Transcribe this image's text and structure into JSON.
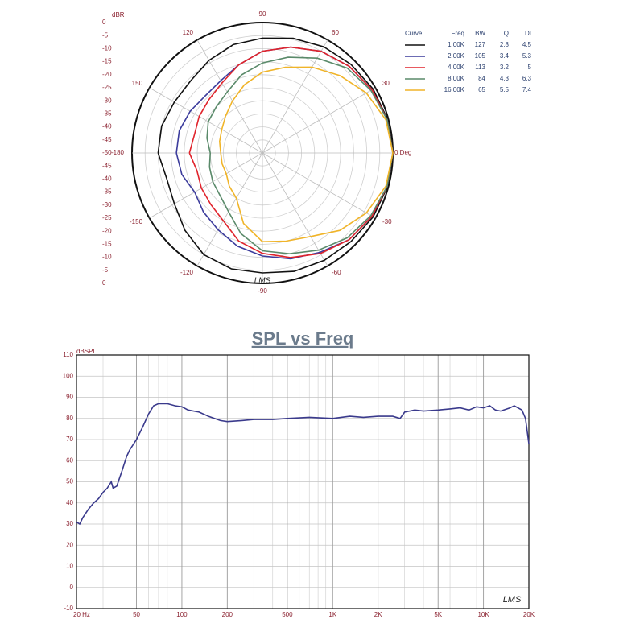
{
  "chart_data": [
    {
      "type": "polar",
      "r_label": "dBR",
      "rlim": [
        -50,
        0
      ],
      "rticks": [
        -50,
        -45,
        -40,
        -35,
        -30,
        -25,
        -20,
        -15,
        -10,
        -5,
        0
      ],
      "theta_ticks": [
        {
          "value": 0,
          "label": "0 Deg"
        },
        30,
        60,
        90,
        120,
        150,
        -180,
        -150,
        -120,
        -90,
        -60,
        -30
      ],
      "legend_headers": [
        "Curve",
        "Freq",
        "BW",
        "Q",
        "DI"
      ],
      "theta": [
        -180,
        -165,
        -150,
        -135,
        -120,
        -105,
        -90,
        -75,
        -60,
        -45,
        -30,
        -15,
        0,
        15,
        30,
        45,
        60,
        75,
        90,
        105,
        120,
        135,
        150,
        165,
        180
      ],
      "series": [
        {
          "name": "1.00K",
          "color": "#111111",
          "bw": 127,
          "q": 2.8,
          "di": 4.5,
          "values": [
            -10,
            -12,
            -11,
            -8,
            -5,
            -4,
            -4,
            -3,
            -2.5,
            -2,
            -1,
            -0.3,
            0,
            -0.3,
            -1,
            -2,
            -3,
            -4.5,
            -6,
            -7,
            -9,
            -11,
            -11,
            -10,
            -10
          ]
        },
        {
          "name": "2.00K",
          "color": "#3c3c9c",
          "bw": 105,
          "q": 3.4,
          "di": 5.3,
          "values": [
            -17,
            -18,
            -20,
            -18,
            -16,
            -13,
            -10.5,
            -8,
            -6,
            -3,
            -1.5,
            -0.5,
            0,
            -0.5,
            -1.5,
            -3,
            -5,
            -8,
            -11,
            -15,
            -18,
            -19,
            -18,
            -17,
            -17
          ]
        },
        {
          "name": "4.00K",
          "color": "#e0242c",
          "bw": 113,
          "q": 3.2,
          "di": 5.0,
          "values": [
            -22,
            -24,
            -23,
            -22,
            -20,
            -15,
            -11.5,
            -8.5,
            -5.5,
            -3,
            -1.5,
            -0.5,
            0,
            -0.5,
            -1.5,
            -3,
            -5,
            -8,
            -11,
            -15,
            -19,
            -21,
            -22,
            -23,
            -22
          ]
        },
        {
          "name": "8.00K",
          "color": "#5a8a6a",
          "bw": 84,
          "q": 4.3,
          "di": 6.3,
          "values": [
            -30,
            -29,
            -28,
            -27,
            -24,
            -18,
            -12.5,
            -10,
            -7,
            -4,
            -2,
            -0.5,
            0,
            -0.5,
            -2,
            -4,
            -8,
            -12,
            -15.5,
            -19,
            -23,
            -25,
            -26,
            -28,
            -30
          ]
        },
        {
          "name": "16.00K",
          "color": "#f0b429",
          "bw": 65,
          "q": 5.5,
          "di": 7.4,
          "values": [
            -34,
            -34,
            -34,
            -32,
            -30,
            -22,
            -16,
            -15,
            -13,
            -8,
            -4,
            -1,
            0,
            -1,
            -4,
            -8,
            -12,
            -16,
            -19,
            -23,
            -27,
            -30,
            -32,
            -33,
            -34
          ]
        }
      ],
      "watermark": "LMS"
    },
    {
      "type": "line",
      "title": "SPL vs Freq",
      "y_label": "dBSPL",
      "log_x": true,
      "color": "#3a3a8c",
      "grid": true,
      "xlim": [
        20,
        20000
      ],
      "ylim": [
        -10,
        110
      ],
      "yticks": [
        -10,
        0,
        10,
        20,
        30,
        40,
        50,
        60,
        70,
        80,
        90,
        100,
        110
      ],
      "xticks": [
        {
          "value": 20,
          "label": "20 Hz"
        },
        50,
        100,
        200,
        500,
        {
          "value": 1000,
          "label": "1K"
        },
        {
          "value": 2000,
          "label": "2K"
        },
        {
          "value": 5000,
          "label": "5K"
        },
        {
          "value": 10000,
          "label": "10K"
        },
        {
          "value": 20000,
          "label": "20K"
        }
      ],
      "xminor_ticks": [
        30,
        40,
        60,
        70,
        80,
        90,
        300,
        400,
        600,
        700,
        800,
        900,
        3000,
        4000,
        6000,
        7000,
        8000,
        9000
      ],
      "x": [
        20,
        21,
        22,
        24,
        26,
        28,
        30,
        32,
        34,
        35,
        37,
        40,
        43,
        45,
        50,
        55,
        60,
        65,
        70,
        80,
        90,
        100,
        110,
        130,
        150,
        180,
        200,
        250,
        300,
        400,
        500,
        700,
        1000,
        1300,
        1600,
        2000,
        2500,
        2800,
        3000,
        3500,
        4000,
        5000,
        6000,
        7000,
        8000,
        9000,
        10000,
        11000,
        12000,
        13000,
        15000,
        16000,
        18000,
        19000,
        20000
      ],
      "values": [
        31,
        30,
        33,
        37,
        40,
        42,
        45,
        47,
        50,
        47,
        48,
        55,
        62,
        65,
        70,
        76,
        82,
        86,
        87,
        87,
        86,
        85.5,
        84,
        83,
        81,
        79,
        78.5,
        79,
        79.5,
        79.5,
        80,
        80.5,
        80,
        81,
        80.5,
        81,
        81,
        80,
        83,
        84,
        83.5,
        84,
        84.5,
        85,
        84,
        85.5,
        85,
        86,
        84,
        83.5,
        85,
        86,
        84,
        80,
        68
      ],
      "watermark": "LMS"
    }
  ]
}
